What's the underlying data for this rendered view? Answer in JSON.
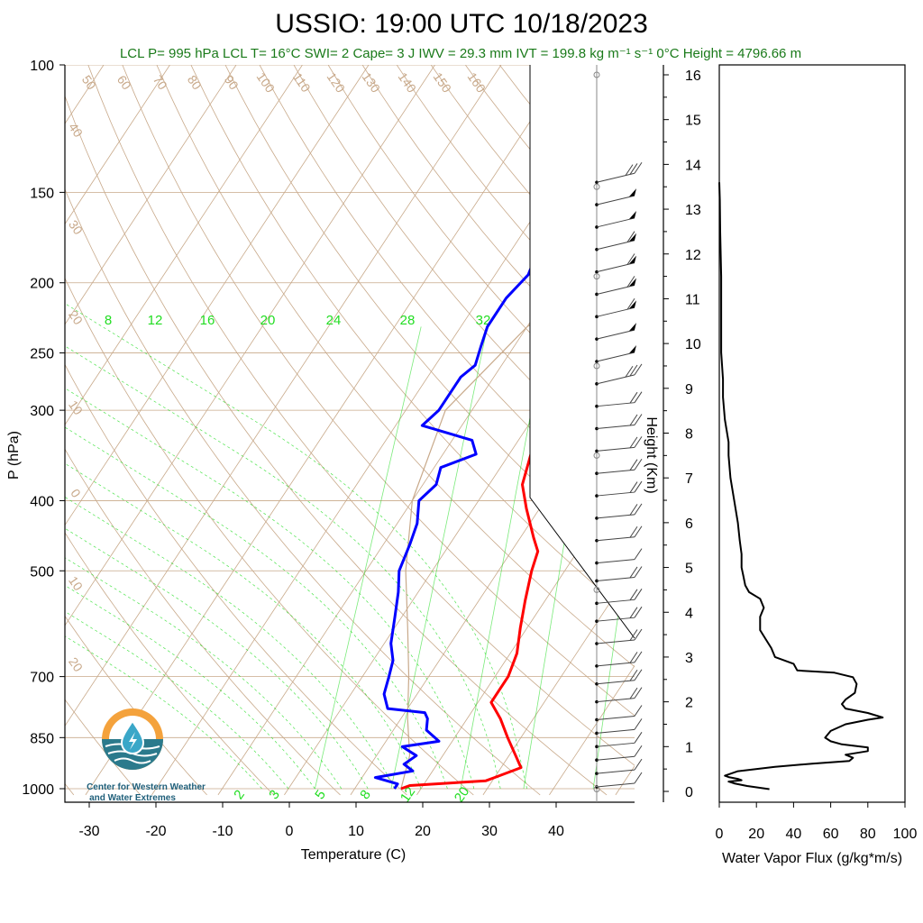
{
  "title": "USSIO: 19:00 UTC 10/18/2023",
  "subtitle": "LCL P= 995 hPa  LCL T= 16°C  SWI= 2  Cape= 3 J  IWV = 29.3 mm  IVT = 199.8 kg m⁻¹ s⁻¹  0°C Height = 4796.66 m",
  "logo": {
    "line1": "Center for Western Weather",
    "line2": "and Water Extremes"
  },
  "colors": {
    "temperature": "#ff0000",
    "dewpoint": "#0000ff",
    "mixing_ratio": "#22dd22",
    "dry_adiabat": "#c8a98a",
    "isotherm": "#c8a98a",
    "moist_adiabat": "#c8a98a",
    "title_subtitle": "#1a7a1a"
  },
  "chart_data": [
    {
      "type": "line",
      "subtype": "skew-T log-P sounding",
      "xlabel": "Temperature (C)",
      "ylabel": "P (hPa)",
      "right_label": "Height (Km)",
      "x_ticks": [
        -30,
        -20,
        -10,
        0,
        10,
        20,
        30,
        40
      ],
      "xlim": [
        -34,
        50
      ],
      "y_ticks": [
        100,
        150,
        200,
        250,
        300,
        400,
        500,
        700,
        850,
        1000
      ],
      "ylim": [
        1020,
        100
      ],
      "y_scale": "log",
      "height_ticks": [
        0,
        1,
        2,
        3,
        4,
        5,
        6,
        7,
        8,
        9,
        10,
        11,
        12,
        13,
        14,
        15,
        16
      ],
      "mixing_ratio_labels": [
        "8",
        "12",
        "16",
        "20",
        "24",
        "28",
        "32"
      ],
      "mixing_ratio_bottom_labels": [
        "2",
        "3",
        "5",
        "8",
        "12",
        "20"
      ],
      "dry_adiabat_labels": [
        "50",
        "60",
        "70",
        "80",
        "90",
        "100",
        "110",
        "120",
        "130",
        "140",
        "150",
        "160"
      ],
      "left_theta_labels": [
        "40",
        "30",
        "20",
        "10",
        "0",
        "10",
        "20"
      ],
      "right_moist_labels": [
        "30",
        "20",
        "10",
        "0",
        "10",
        "20",
        "30"
      ],
      "series": [
        {
          "name": "Temperature",
          "points": [
            [
              17,
              1000
            ],
            [
              18,
              990
            ],
            [
              29,
              975
            ],
            [
              30,
              965
            ],
            [
              33,
              935
            ],
            [
              31,
              900
            ],
            [
              28,
              850
            ],
            [
              25,
              800
            ],
            [
              22,
              760
            ],
            [
              22,
              720
            ],
            [
              22,
              700
            ],
            [
              21,
              650
            ],
            [
              19,
              600
            ],
            [
              17,
              550
            ],
            [
              15,
              500
            ],
            [
              14,
              470
            ],
            [
              12,
              450
            ],
            [
              8,
              410
            ],
            [
              5,
              380
            ],
            [
              3,
              340
            ],
            [
              1,
              310
            ],
            [
              3,
              300
            ],
            [
              4,
              285
            ],
            [
              3,
              270
            ],
            [
              5,
              260
            ],
            [
              4,
              250
            ],
            [
              2,
              235
            ],
            [
              3,
              220
            ],
            [
              2,
              205
            ],
            [
              4,
              195
            ],
            [
              4,
              185
            ],
            [
              3,
              170
            ],
            [
              1,
              155
            ],
            [
              0,
              150
            ]
          ]
        },
        {
          "name": "Dewpoint",
          "points": [
            [
              16,
              1000
            ],
            [
              16,
              985
            ],
            [
              12,
              965
            ],
            [
              17,
              945
            ],
            [
              15,
              925
            ],
            [
              16,
              900
            ],
            [
              13,
              875
            ],
            [
              18,
              860
            ],
            [
              15,
              830
            ],
            [
              14,
              800
            ],
            [
              13,
              785
            ],
            [
              7,
              775
            ],
            [
              5,
              740
            ],
            [
              4,
              700
            ],
            [
              3,
              665
            ],
            [
              1,
              630
            ],
            [
              -1,
              580
            ],
            [
              -3,
              535
            ],
            [
              -5,
              500
            ],
            [
              -6,
              460
            ],
            [
              -7,
              430
            ],
            [
              -9,
              400
            ],
            [
              -8,
              380
            ],
            [
              -9,
              360
            ],
            [
              -5,
              345
            ],
            [
              -7,
              330
            ],
            [
              -16,
              315
            ],
            [
              -15,
              300
            ],
            [
              -15,
              270
            ],
            [
              -14,
              260
            ],
            [
              -15,
              245
            ],
            [
              -16,
              230
            ],
            [
              -16,
              210
            ],
            [
              -15,
              195
            ],
            [
              -16,
              180
            ],
            [
              -17,
              165
            ],
            [
              -18,
              150
            ]
          ]
        },
        {
          "name": "Parcel",
          "points": [
            [
              17,
              1000
            ],
            [
              15,
              900
            ],
            [
              11,
              800
            ],
            [
              7,
              700
            ],
            [
              2,
              600
            ],
            [
              -4,
              500
            ],
            [
              -10,
              400
            ],
            [
              -14,
              300
            ],
            [
              -10,
              230
            ],
            [
              0,
              180
            ],
            [
              10,
              130
            ],
            [
              20,
              100
            ]
          ]
        }
      ],
      "wind_barbs": {
        "heights_km": [
          0.1,
          0.4,
          0.7,
          1.0,
          1.3,
          1.6,
          2.0,
          2.4,
          2.8,
          3.3,
          3.8,
          4.2,
          4.7,
          5.1,
          5.6,
          6.1,
          6.6,
          7.1,
          7.6,
          8.1,
          8.6,
          9.1,
          9.6,
          10.1,
          10.6,
          11.1,
          11.6,
          12.1,
          12.6,
          13.1,
          13.6
        ],
        "speed_kt": [
          15,
          10,
          10,
          10,
          10,
          10,
          20,
          20,
          20,
          20,
          20,
          20,
          20,
          15,
          20,
          20,
          20,
          20,
          20,
          20,
          20,
          30,
          40,
          40,
          50,
          55,
          55,
          55,
          45,
          40,
          30
        ]
      }
    },
    {
      "type": "line",
      "xlabel": "Water Vapor Flux (g/kg*m/s)",
      "xlim": [
        0,
        100
      ],
      "x_ticks": [
        0,
        20,
        40,
        60,
        80,
        100
      ],
      "ylim": [
        -0.3,
        16.7
      ],
      "series": [
        {
          "name": "Water Vapor Flux",
          "points": [
            [
              27,
              0.05
            ],
            [
              15,
              0.12
            ],
            [
              8,
              0.18
            ],
            [
              5,
              0.22
            ],
            [
              12,
              0.25
            ],
            [
              10,
              0.28
            ],
            [
              5,
              0.32
            ],
            [
              3,
              0.35
            ],
            [
              10,
              0.45
            ],
            [
              30,
              0.55
            ],
            [
              50,
              0.62
            ],
            [
              70,
              0.68
            ],
            [
              72,
              0.75
            ],
            [
              68,
              0.82
            ],
            [
              80,
              0.9
            ],
            [
              80,
              0.98
            ],
            [
              66,
              1.05
            ],
            [
              60,
              1.12
            ],
            [
              57,
              1.2
            ],
            [
              60,
              1.35
            ],
            [
              68,
              1.5
            ],
            [
              80,
              1.6
            ],
            [
              88,
              1.65
            ],
            [
              80,
              1.75
            ],
            [
              68,
              1.85
            ],
            [
              66,
              1.95
            ],
            [
              68,
              2.05
            ],
            [
              73,
              2.2
            ],
            [
              74,
              2.4
            ],
            [
              72,
              2.55
            ],
            [
              62,
              2.65
            ],
            [
              42,
              2.7
            ],
            [
              40,
              2.85
            ],
            [
              30,
              3.0
            ],
            [
              28,
              3.2
            ],
            [
              25,
              3.4
            ],
            [
              22,
              3.6
            ],
            [
              22,
              3.9
            ],
            [
              24,
              4.1
            ],
            [
              22,
              4.3
            ],
            [
              16,
              4.45
            ],
            [
              14,
              4.6
            ],
            [
              13,
              4.8
            ],
            [
              12,
              5.0
            ],
            [
              12,
              5.3
            ],
            [
              11,
              5.6
            ],
            [
              10,
              6.0
            ],
            [
              8,
              6.5
            ],
            [
              6,
              7.0
            ],
            [
              5,
              7.5
            ],
            [
              5,
              7.8
            ],
            [
              3,
              8.3
            ],
            [
              2,
              8.8
            ],
            [
              2,
              9.2
            ],
            [
              1,
              9.8
            ],
            [
              1,
              10.5
            ],
            [
              1,
              11.5
            ],
            [
              0.5,
              12.5
            ],
            [
              0.3,
              13.2
            ],
            [
              0,
              13.6
            ]
          ]
        }
      ]
    }
  ]
}
